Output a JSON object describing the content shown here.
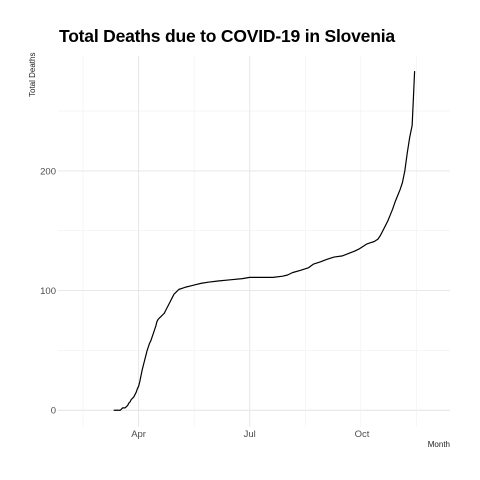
{
  "chart_data": {
    "type": "line",
    "title": "Total Deaths due to COVID-19 in Slovenia",
    "xlabel": "Month",
    "ylabel": "Total Deaths",
    "x_ticks": [
      "2020-04-01",
      "2020-07-01",
      "2020-10-01"
    ],
    "x_tick_labels": [
      "Apr",
      "Jul",
      "Oct"
    ],
    "y_ticks": [
      0,
      100,
      200
    ],
    "y_tick_labels": [
      "0",
      "100",
      "200"
    ],
    "xlim": [
      "2020-01-26",
      "2020-12-12"
    ],
    "ylim": [
      -14,
      296
    ],
    "grid": true,
    "series": [
      {
        "color": "#000000",
        "points": [
          [
            "2020-03-12",
            0
          ],
          [
            "2020-03-17",
            0
          ],
          [
            "2020-03-18",
            1
          ],
          [
            "2020-03-19",
            2
          ],
          [
            "2020-03-20",
            2
          ],
          [
            "2020-03-21",
            2
          ],
          [
            "2020-03-22",
            3
          ],
          [
            "2020-03-23",
            4
          ],
          [
            "2020-03-24",
            6
          ],
          [
            "2020-03-25",
            7
          ],
          [
            "2020-03-26",
            9
          ],
          [
            "2020-03-27",
            10
          ],
          [
            "2020-03-28",
            11
          ],
          [
            "2020-03-29",
            13
          ],
          [
            "2020-03-30",
            15
          ],
          [
            "2020-03-31",
            18
          ],
          [
            "2020-04-01",
            20
          ],
          [
            "2020-04-02",
            24
          ],
          [
            "2020-04-03",
            29
          ],
          [
            "2020-04-04",
            34
          ],
          [
            "2020-04-05",
            38
          ],
          [
            "2020-04-06",
            42
          ],
          [
            "2020-04-07",
            46
          ],
          [
            "2020-04-08",
            50
          ],
          [
            "2020-04-09",
            53
          ],
          [
            "2020-04-10",
            56
          ],
          [
            "2020-04-11",
            58
          ],
          [
            "2020-04-12",
            61
          ],
          [
            "2020-04-13",
            64
          ],
          [
            "2020-04-14",
            67
          ],
          [
            "2020-04-15",
            70
          ],
          [
            "2020-04-16",
            74
          ],
          [
            "2020-04-17",
            76
          ],
          [
            "2020-04-18",
            77
          ],
          [
            "2020-04-19",
            78
          ],
          [
            "2020-04-20",
            79
          ],
          [
            "2020-04-21",
            80
          ],
          [
            "2020-04-22",
            81
          ],
          [
            "2020-04-23",
            83
          ],
          [
            "2020-04-24",
            85
          ],
          [
            "2020-04-25",
            87
          ],
          [
            "2020-04-26",
            89
          ],
          [
            "2020-04-27",
            91
          ],
          [
            "2020-04-28",
            93
          ],
          [
            "2020-04-29",
            95
          ],
          [
            "2020-04-30",
            97
          ],
          [
            "2020-05-02",
            99
          ],
          [
            "2020-05-04",
            101
          ],
          [
            "2020-05-07",
            102
          ],
          [
            "2020-05-10",
            103
          ],
          [
            "2020-05-14",
            104
          ],
          [
            "2020-05-18",
            105
          ],
          [
            "2020-05-22",
            106
          ],
          [
            "2020-05-28",
            107
          ],
          [
            "2020-06-05",
            108
          ],
          [
            "2020-06-15",
            109
          ],
          [
            "2020-06-25",
            110
          ],
          [
            "2020-07-01",
            111
          ],
          [
            "2020-07-20",
            111
          ],
          [
            "2020-07-28",
            112
          ],
          [
            "2020-08-01",
            113
          ],
          [
            "2020-08-05",
            115
          ],
          [
            "2020-08-12",
            117
          ],
          [
            "2020-08-18",
            119
          ],
          [
            "2020-08-22",
            122
          ],
          [
            "2020-08-28",
            124
          ],
          [
            "2020-09-02",
            126
          ],
          [
            "2020-09-08",
            128
          ],
          [
            "2020-09-15",
            129
          ],
          [
            "2020-09-20",
            131
          ],
          [
            "2020-09-25",
            133
          ],
          [
            "2020-09-29",
            135
          ],
          [
            "2020-10-02",
            137
          ],
          [
            "2020-10-05",
            139
          ],
          [
            "2020-10-08",
            140
          ],
          [
            "2020-10-11",
            141
          ],
          [
            "2020-10-14",
            143
          ],
          [
            "2020-10-16",
            146
          ],
          [
            "2020-10-18",
            150
          ],
          [
            "2020-10-20",
            154
          ],
          [
            "2020-10-22",
            158
          ],
          [
            "2020-10-24",
            163
          ],
          [
            "2020-10-26",
            168
          ],
          [
            "2020-10-28",
            174
          ],
          [
            "2020-10-30",
            179
          ],
          [
            "2020-11-01",
            184
          ],
          [
            "2020-11-03",
            190
          ],
          [
            "2020-11-05",
            200
          ],
          [
            "2020-11-07",
            215
          ],
          [
            "2020-11-09",
            228
          ],
          [
            "2020-11-11",
            238
          ],
          [
            "2020-11-12",
            260
          ],
          [
            "2020-11-13",
            283
          ]
        ]
      }
    ]
  }
}
